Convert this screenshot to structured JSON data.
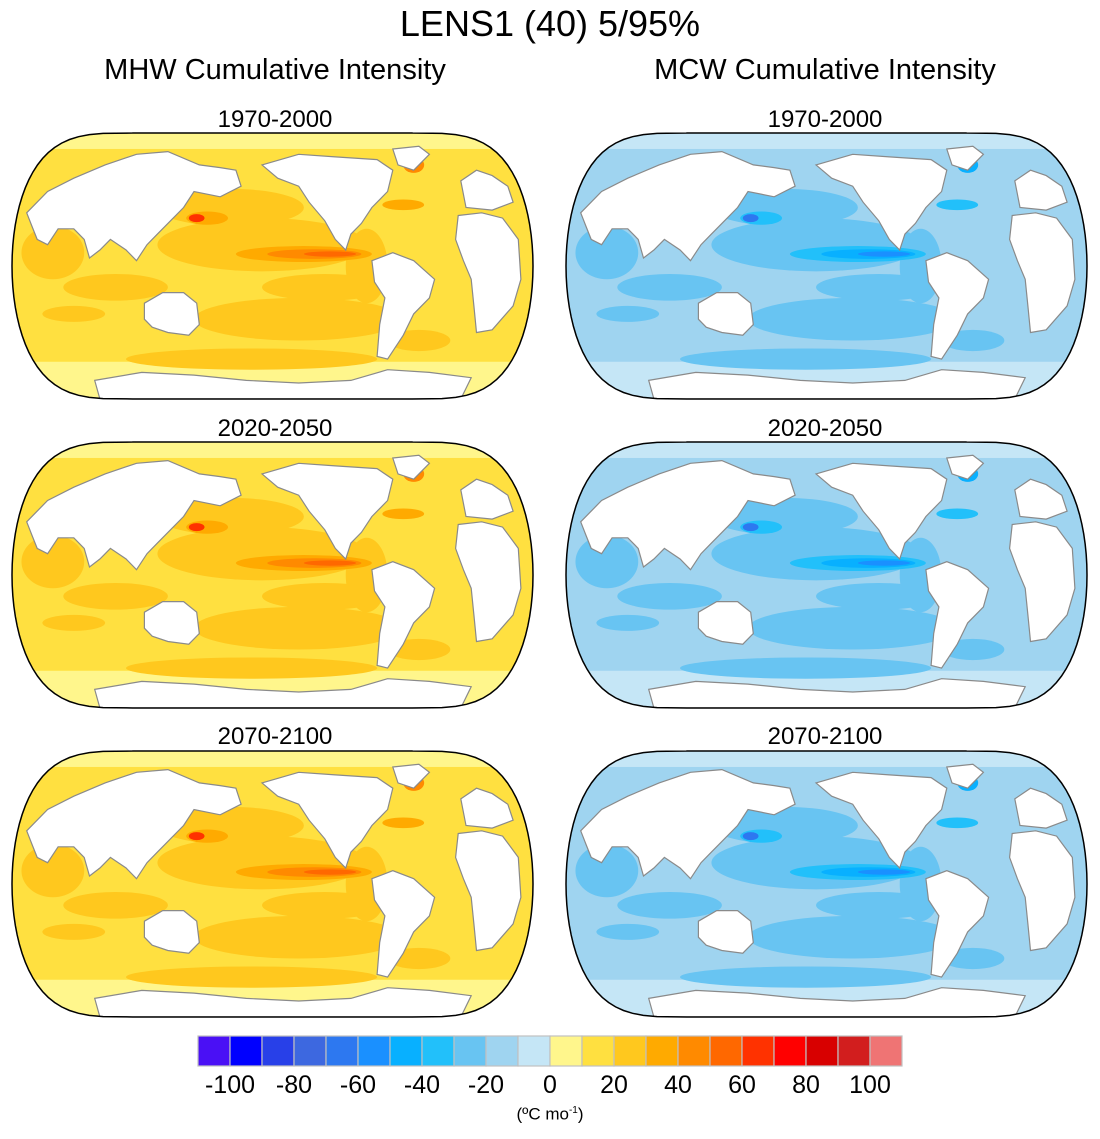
{
  "figure": {
    "title": "LENS1 (40) 5/95%",
    "columns": [
      {
        "title": "MHW Cumulative Intensity",
        "scheme": "warm"
      },
      {
        "title": "MCW Cumulative Intensity",
        "scheme": "cold"
      }
    ],
    "periods": [
      "1970-2000",
      "2020-2050",
      "2070-2100"
    ]
  },
  "colorbar": {
    "units_prefix": "(ºC mo",
    "units_exp": "-1",
    "units_suffix": ")",
    "tick_labels": [
      "-100",
      "-80",
      "-60",
      "-40",
      "-20",
      "0",
      "20",
      "40",
      "60",
      "80",
      "100"
    ]
  },
  "chart_data": {
    "type": "heatmap",
    "title": "LENS1 (40) 5/95%",
    "subtitle_left": "MHW Cumulative Intensity",
    "subtitle_right": "MCW Cumulative Intensity",
    "panels": [
      {
        "column": "MHW Cumulative Intensity",
        "period": "1970-2000",
        "typical_range": [
          10,
          30
        ],
        "max_region": "Equatorial East Pacific / Kuroshio",
        "peak_approx": 60
      },
      {
        "column": "MHW Cumulative Intensity",
        "period": "2020-2050",
        "typical_range": [
          10,
          30
        ],
        "max_region": "Equatorial East Pacific / Kuroshio",
        "peak_approx": 60
      },
      {
        "column": "MHW Cumulative Intensity",
        "period": "2070-2100",
        "typical_range": [
          10,
          30
        ],
        "max_region": "Equatorial East Pacific / Kuroshio",
        "peak_approx": 60
      },
      {
        "column": "MCW Cumulative Intensity",
        "period": "1970-2000",
        "typical_range": [
          -30,
          -10
        ],
        "max_region": "Equatorial East Pacific / Kuroshio / Labrador Sea",
        "peak_approx": -60
      },
      {
        "column": "MCW Cumulative Intensity",
        "period": "2020-2050",
        "typical_range": [
          -30,
          -10
        ],
        "max_region": "Equatorial East Pacific / Kuroshio",
        "peak_approx": -60
      },
      {
        "column": "MCW Cumulative Intensity",
        "period": "2070-2100",
        "typical_range": [
          -30,
          -10
        ],
        "max_region": "Equatorial East Pacific / Kuroshio",
        "peak_approx": -50
      }
    ],
    "colorbar": {
      "levels": [
        -100,
        -90,
        -80,
        -70,
        -60,
        -50,
        -40,
        -30,
        -20,
        -10,
        0,
        10,
        20,
        30,
        40,
        50,
        60,
        70,
        80,
        90,
        100
      ],
      "colors": [
        "#4a10f5",
        "#0000ff",
        "#2840e8",
        "#3d68e0",
        "#2d78f0",
        "#1a90ff",
        "#08b0ff",
        "#22c0fa",
        "#68c4f2",
        "#9fd4f0",
        "#c5e6f6",
        "#fff68c",
        "#ffe040",
        "#ffc81e",
        "#ffaa00",
        "#ff8a00",
        "#ff6800",
        "#ff3200",
        "#ff0000",
        "#d80000",
        "#d21e1e",
        "#ef7474"
      ],
      "tick_labels": [
        "-100",
        "-80",
        "-60",
        "-40",
        "-20",
        "0",
        "20",
        "40",
        "60",
        "80",
        "100"
      ],
      "units": "(ºC mo-1)"
    },
    "projection": "Robinson, Pacific-centered"
  }
}
